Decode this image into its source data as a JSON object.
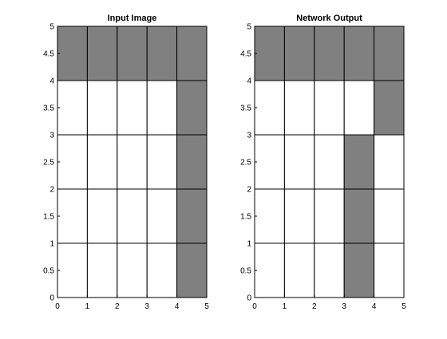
{
  "colors": {
    "filled": "#808080",
    "empty": "#ffffff",
    "grid_line": "#000000",
    "background": "#ffffff"
  },
  "chart_data": [
    {
      "type": "heatmap",
      "title": "Input Image",
      "xlabel": "",
      "ylabel": "",
      "xlim": [
        0,
        5
      ],
      "ylim": [
        0,
        5
      ],
      "x_ticks": [
        0,
        1,
        2,
        3,
        4,
        5
      ],
      "y_ticks": [
        0,
        0.5,
        1,
        1.5,
        2,
        2.5,
        3,
        3.5,
        4,
        4.5,
        5
      ],
      "x_tick_labels": [
        "0",
        "1",
        "2",
        "3",
        "4",
        "5"
      ],
      "y_tick_labels": [
        "0",
        "0.5",
        "1",
        "1.5",
        "2",
        "2.5",
        "3",
        "3.5",
        "4",
        "4.5",
        "5"
      ],
      "grid": true,
      "columns": 5,
      "rows": 5,
      "cells_rows_top_to_bottom": [
        [
          1,
          1,
          1,
          1,
          1
        ],
        [
          0,
          0,
          0,
          0,
          1
        ],
        [
          0,
          0,
          0,
          0,
          1
        ],
        [
          0,
          0,
          0,
          0,
          1
        ],
        [
          0,
          0,
          0,
          0,
          1
        ]
      ]
    },
    {
      "type": "heatmap",
      "title": "Network Output",
      "xlabel": "",
      "ylabel": "",
      "xlim": [
        0,
        5
      ],
      "ylim": [
        0,
        5
      ],
      "x_ticks": [
        0,
        1,
        2,
        3,
        4,
        5
      ],
      "y_ticks": [
        0,
        0.5,
        1,
        1.5,
        2,
        2.5,
        3,
        3.5,
        4,
        4.5,
        5
      ],
      "x_tick_labels": [
        "0",
        "1",
        "2",
        "3",
        "4",
        "5"
      ],
      "y_tick_labels": [
        "0",
        "0.5",
        "1",
        "1.5",
        "2",
        "2.5",
        "3",
        "3.5",
        "4",
        "4.5",
        "5"
      ],
      "grid": true,
      "columns": 5,
      "rows": 5,
      "cells_rows_top_to_bottom": [
        [
          1,
          1,
          1,
          1,
          1
        ],
        [
          0,
          0,
          0,
          0,
          1
        ],
        [
          0,
          0,
          0,
          1,
          0
        ],
        [
          0,
          0,
          0,
          1,
          0
        ],
        [
          0,
          0,
          0,
          1,
          0
        ]
      ]
    }
  ]
}
